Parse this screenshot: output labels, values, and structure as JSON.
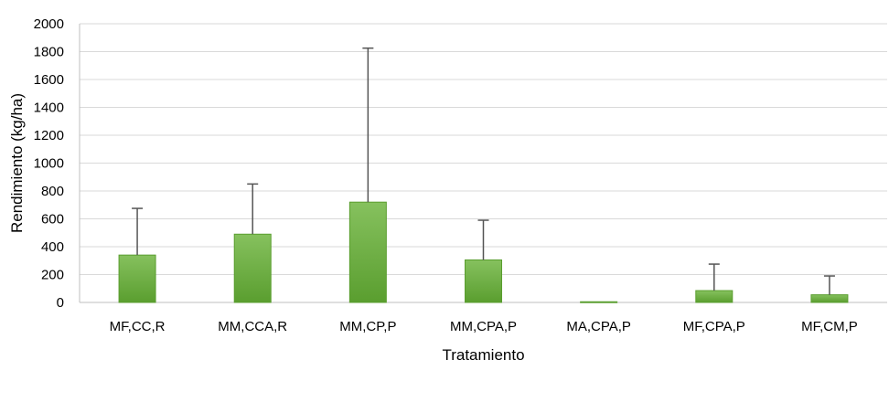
{
  "chart_data": {
    "type": "bar",
    "title": "",
    "xlabel": "Tratamiento",
    "ylabel": "Rendimiento (kg/ha)",
    "ylim": [
      0,
      2000
    ],
    "yticks": [
      0,
      200,
      400,
      600,
      800,
      1000,
      1200,
      1400,
      1600,
      1800,
      2000
    ],
    "categories": [
      "MF,CC,R",
      "MM,CCA,R",
      "MM,CP,P",
      "MM,CPA,P",
      "MA,CPA,P",
      "MF,CPA,P",
      "MF,CM,P"
    ],
    "values": [
      340,
      490,
      720,
      305,
      5,
      85,
      55
    ],
    "error_upper": [
      675,
      850,
      1825,
      590,
      5,
      275,
      190
    ],
    "grid": true,
    "legend": "none",
    "colors": {
      "bar_top": "#86c15e",
      "bar_bottom": "#5a9e2f",
      "error_bar": "#555555",
      "grid": "#d9d9d9"
    }
  }
}
